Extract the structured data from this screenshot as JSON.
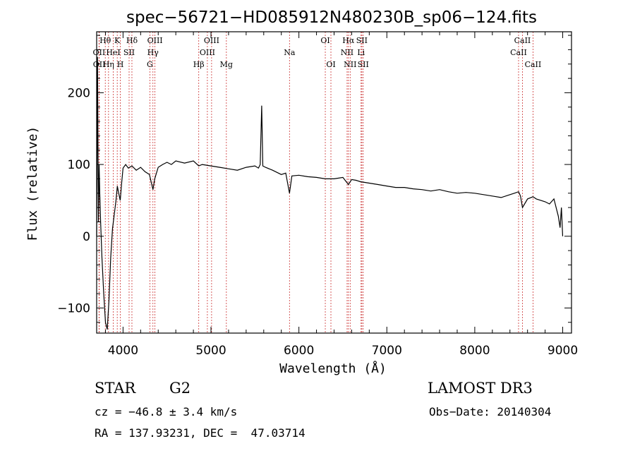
{
  "chart_data": {
    "type": "line",
    "title": "spec−56721−HD085912N480230B_sp06−124.fits",
    "xlabel": "Wavelength (Å)",
    "ylabel": "Flux (relative)",
    "xlim": [
      3700,
      9100
    ],
    "ylim": [
      -135,
      285
    ],
    "x_ticks": [
      4000,
      5000,
      6000,
      7000,
      8000,
      9000
    ],
    "x_tick_labels": [
      "4000",
      "5000",
      "6000",
      "7000",
      "8000",
      "9000"
    ],
    "y_ticks": [
      -100,
      0,
      100,
      200
    ],
    "y_tick_labels": [
      "−100",
      "0",
      "100",
      "200"
    ],
    "grid": false,
    "line_color": "#000000",
    "marker_color": "#cc3333",
    "series": [
      {
        "x": [
          3700,
          3705,
          3710,
          3715,
          3720,
          3728,
          3735,
          3745,
          3760,
          3780,
          3800,
          3820,
          3840,
          3860,
          3880,
          3900,
          3920,
          3935,
          3950,
          3968,
          3985,
          4000,
          4030,
          4060,
          4101,
          4150,
          4200,
          4250,
          4300,
          4340,
          4360,
          4400,
          4450,
          4500,
          4550,
          4600,
          4700,
          4800,
          4861,
          4900,
          5000,
          5100,
          5200,
          5300,
          5400,
          5500,
          5540,
          5560,
          5577,
          5590,
          5620,
          5700,
          5800,
          5850,
          5893,
          5920,
          6000,
          6100,
          6200,
          6300,
          6400,
          6500,
          6563,
          6600,
          6650,
          6700,
          6800,
          6900,
          7000,
          7100,
          7200,
          7300,
          7400,
          7500,
          7600,
          7700,
          7800,
          7900,
          8000,
          8100,
          8200,
          8300,
          8400,
          8450,
          8498,
          8520,
          8542,
          8600,
          8662,
          8700,
          8750,
          8800,
          8850,
          8900,
          8950,
          8970,
          8985,
          9000
        ],
        "y": [
          0,
          110,
          250,
          120,
          20,
          100,
          60,
          20,
          -30,
          -80,
          -120,
          -130,
          -90,
          -30,
          10,
          30,
          50,
          70,
          60,
          50,
          75,
          95,
          100,
          95,
          98,
          92,
          96,
          90,
          86,
          65,
          80,
          96,
          100,
          103,
          100,
          105,
          102,
          105,
          98,
          100,
          98,
          96,
          94,
          92,
          96,
          98,
          95,
          100,
          182,
          98,
          96,
          92,
          86,
          88,
          60,
          84,
          85,
          83,
          82,
          80,
          80,
          82,
          72,
          79,
          78,
          76,
          74,
          72,
          70,
          68,
          68,
          66,
          65,
          63,
          65,
          62,
          60,
          61,
          60,
          58,
          56,
          54,
          58,
          60,
          62,
          56,
          40,
          52,
          55,
          52,
          50,
          48,
          45,
          52,
          28,
          12,
          40,
          0
        ]
      }
    ],
    "lines": [
      {
        "label": "OII",
        "x": 3727,
        "row": 1
      },
      {
        "label": "OII",
        "x": 3729,
        "row": 2
      },
      {
        "label": "Hθ",
        "x": 3798,
        "row": 0
      },
      {
        "label": "Hη",
        "x": 3835,
        "row": 2
      },
      {
        "label": "HeI",
        "x": 3889,
        "row": 1
      },
      {
        "label": "K",
        "x": 3934,
        "row": 0
      },
      {
        "label": "H",
        "x": 3969,
        "row": 2
      },
      {
        "label": "SII",
        "x": 4069,
        "row": 1
      },
      {
        "label": "Hδ",
        "x": 4101,
        "row": 0
      },
      {
        "label": "Hγ",
        "x": 4340,
        "row": 1
      },
      {
        "label": "G",
        "x": 4305,
        "row": 2
      },
      {
        "label": "OIII",
        "x": 4363,
        "row": 0
      },
      {
        "label": "Hβ",
        "x": 4861,
        "row": 2
      },
      {
        "label": "OIII",
        "x": 4959,
        "row": 1
      },
      {
        "label": "OIII",
        "x": 5007,
        "row": 0
      },
      {
        "label": "Mg",
        "x": 5175,
        "row": 2
      },
      {
        "label": "Na",
        "x": 5893,
        "row": 1
      },
      {
        "label": "OI",
        "x": 6300,
        "row": 0
      },
      {
        "label": "OI",
        "x": 6364,
        "row": 2
      },
      {
        "label": "NII",
        "x": 6548,
        "row": 1
      },
      {
        "label": "Hα",
        "x": 6563,
        "row": 0
      },
      {
        "label": "NII",
        "x": 6583,
        "row": 2
      },
      {
        "label": "Li",
        "x": 6707,
        "row": 1
      },
      {
        "label": "SII",
        "x": 6716,
        "row": 0
      },
      {
        "label": "SII",
        "x": 6731,
        "row": 2
      },
      {
        "label": "CaII",
        "x": 8498,
        "row": 1
      },
      {
        "label": "CaII",
        "x": 8542,
        "row": 0
      },
      {
        "label": "CaII",
        "x": 8662,
        "row": 2
      }
    ]
  },
  "info": {
    "object_class": "STAR",
    "subclass": "G2",
    "survey": "LAMOST DR3",
    "redshift": "cz = −46.8 ± 3.4 km/s",
    "obs_date": "Obs−Date: 20140304",
    "coords": "RA = 137.93231, DEC =  47.03714"
  }
}
